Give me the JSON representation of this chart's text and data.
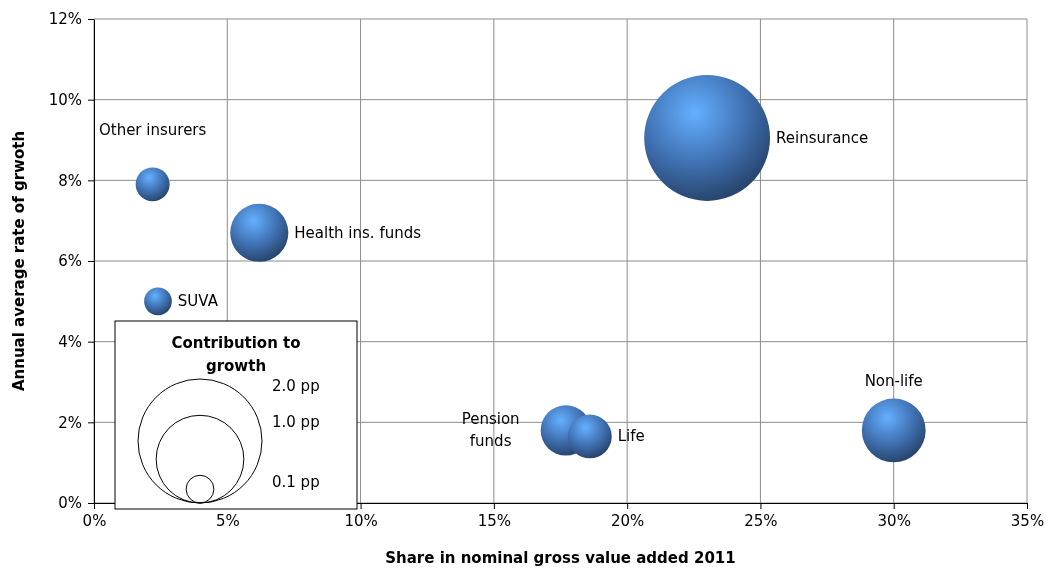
{
  "chart_data": {
    "type": "bubble",
    "xlabel": "Share in nominal gross value added 2011",
    "ylabel": "Annual average rate of grwoth",
    "legend_title": "Contribution to growth",
    "xlim": [
      0,
      35
    ],
    "xticks": [
      {
        "value": 0,
        "label": "0%"
      },
      {
        "value": 5,
        "label": "5%"
      },
      {
        "value": 10,
        "label": "10%"
      },
      {
        "value": 15,
        "label": "15%"
      },
      {
        "value": 20,
        "label": "20%"
      },
      {
        "value": 25,
        "label": "25%"
      },
      {
        "value": 30,
        "label": "30%"
      },
      {
        "value": 35,
        "label": "35%"
      }
    ],
    "ylim": [
      0,
      12
    ],
    "yticks": [
      {
        "value": 0,
        "label": "0%"
      },
      {
        "value": 2,
        "label": "2%"
      },
      {
        "value": 4,
        "label": "4%"
      },
      {
        "value": 6,
        "label": "6%"
      },
      {
        "value": 8,
        "label": "8%"
      },
      {
        "value": 10,
        "label": "10%"
      },
      {
        "value": 12,
        "label": "12%"
      }
    ],
    "grid": true,
    "size_legend": [
      {
        "value": 2.0,
        "label": "2.0 pp"
      },
      {
        "value": 1.0,
        "label": "1.0 pp"
      },
      {
        "value": 0.1,
        "label": "0.1 pp"
      }
    ],
    "series": [
      {
        "name": "Other insurers",
        "color": "#3f6fb0",
        "x": [
          2.2
        ],
        "values": [
          7.9
        ],
        "sizes": [
          0.15
        ]
      },
      {
        "name": "Health ins. funds",
        "color": "#3f6fb0",
        "x": [
          6.2
        ],
        "values": [
          6.7
        ],
        "sizes": [
          0.44
        ]
      },
      {
        "name": "SUVA",
        "color": "#3f6fb0",
        "x": [
          2.4
        ],
        "values": [
          5.0
        ],
        "sizes": [
          0.1
        ]
      },
      {
        "name": "Reinsurance",
        "color": "#3f6fb0",
        "x": [
          23.0
        ],
        "values": [
          9.05
        ],
        "sizes": [
          2.06
        ]
      },
      {
        "name": "Pension funds",
        "color": "#3f6fb0",
        "x": [
          17.7
        ],
        "values": [
          1.8
        ],
        "sizes": [
          0.33
        ]
      },
      {
        "name": "Life",
        "color": "#3f6fb0",
        "x": [
          18.6
        ],
        "values": [
          1.65
        ],
        "sizes": [
          0.25
        ]
      },
      {
        "name": "Non-life",
        "color": "#3f6fb0",
        "x": [
          30.0
        ],
        "values": [
          1.8
        ],
        "sizes": [
          0.53
        ]
      }
    ]
  }
}
